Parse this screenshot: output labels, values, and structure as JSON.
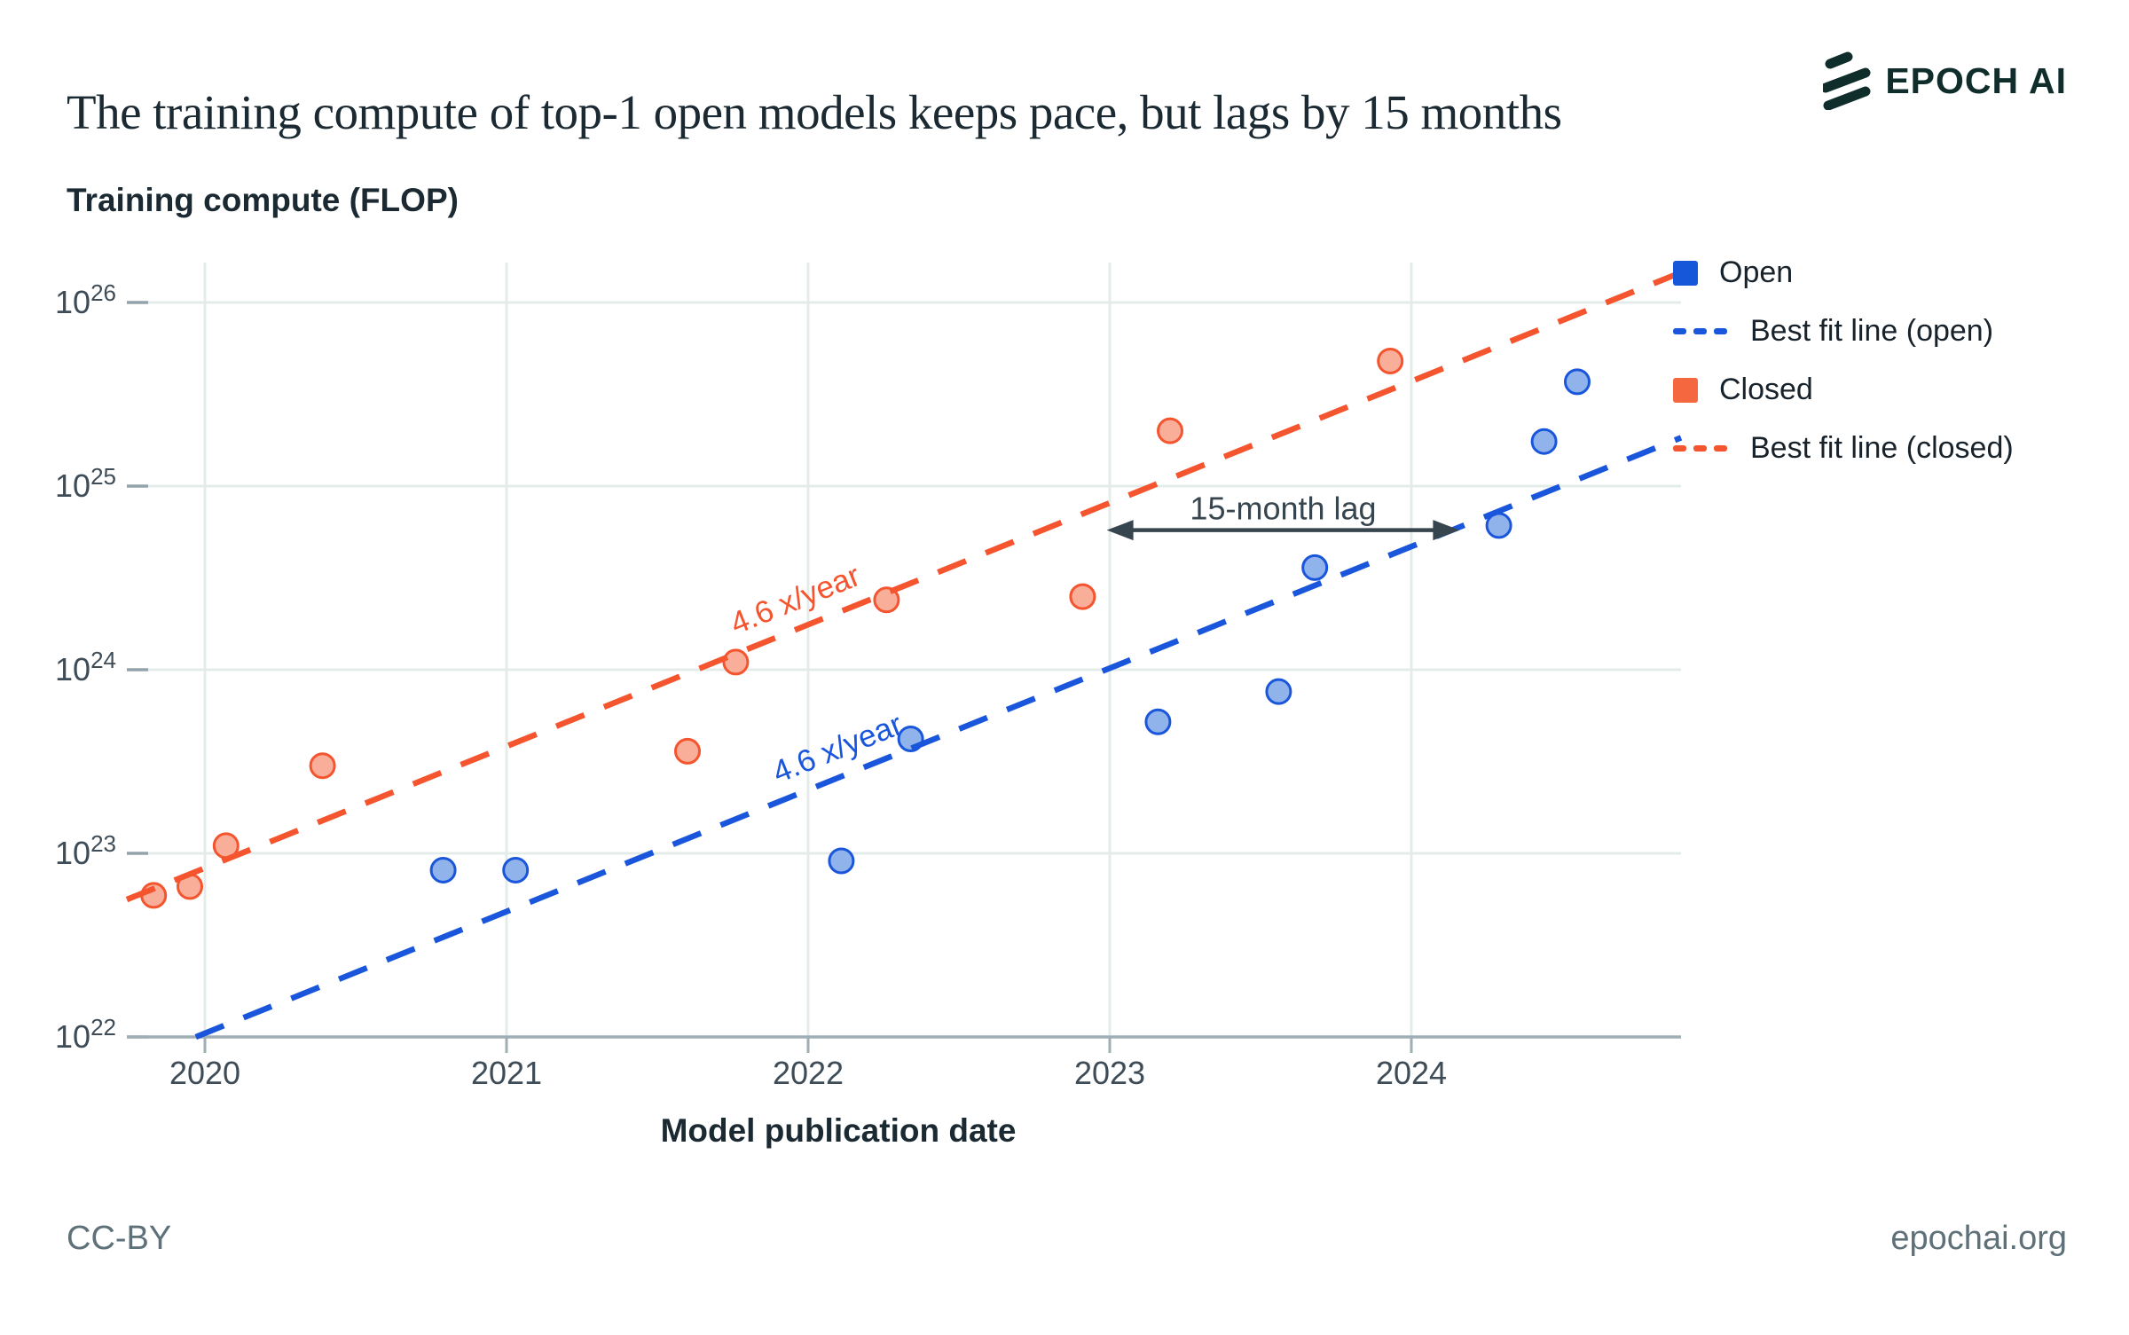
{
  "header": {
    "title": "The training compute of top-1 open models keeps pace, but lags by 15 months",
    "brand": "EPOCH AI"
  },
  "y_axis_title": "Training compute (FLOP)",
  "x_axis_title": "Model publication date",
  "footer": {
    "left": "CC-BY",
    "right": "epochai.org"
  },
  "legend": {
    "items": [
      {
        "label": "Open",
        "swatch": "square",
        "color": "#1656D9"
      },
      {
        "label": "Best fit line (open)",
        "swatch": "dash",
        "color": "#1A56DB"
      },
      {
        "label": "Closed",
        "swatch": "square",
        "color": "#F5683F"
      },
      {
        "label": "Best fit line (closed)",
        "swatch": "dash",
        "color": "#F4542E"
      }
    ]
  },
  "colors": {
    "open_line": "#1A56DB",
    "open_fill": "#8FB3EA",
    "closed_line": "#F4542E",
    "closed_fill": "#F9AE9A",
    "grid": "#E4ECEA",
    "axis": "#9FAFB5",
    "y_tick": "#93A3AB",
    "tick_text": "#3E4C57",
    "annotation": "#37454E",
    "title_text": "#1B2A32",
    "footer_text": "#5E7078",
    "brand_color": "#0F2D2B"
  },
  "chart_data": {
    "type": "scatter",
    "title": "The training compute of top-1 open models keeps pace, but lags by 15 months",
    "xlabel": "Model publication date",
    "ylabel": "Training compute (FLOP)",
    "x_ticks": [
      2020,
      2021,
      2022,
      2023,
      2024
    ],
    "y_tick_exponents": [
      22,
      23,
      24,
      25,
      26
    ],
    "x_range": [
      2019.74,
      2024.89
    ],
    "y_log_range": [
      22,
      26.2
    ],
    "grid": true,
    "legend_position": "top-right",
    "series": [
      {
        "name": "Open",
        "points": [
          [
            2020.79,
            8.1e+22
          ],
          [
            2021.03,
            8.1e+22
          ],
          [
            2022.11,
            9.1e+22
          ],
          [
            2022.34,
            4.2e+23
          ],
          [
            2023.16,
            5.2e+23
          ],
          [
            2023.56,
            7.6e+23
          ],
          [
            2023.68,
            3.6e+24
          ],
          [
            2024.29,
            6.1e+24
          ],
          [
            2024.44,
            1.75e+25
          ],
          [
            2024.55,
            3.7e+25
          ]
        ]
      },
      {
        "name": "Closed",
        "points": [
          [
            2019.83,
            5.9e+22
          ],
          [
            2019.95,
            6.6e+22
          ],
          [
            2020.07,
            1.1e+23
          ],
          [
            2020.39,
            3e+23
          ],
          [
            2021.6,
            3.6e+23
          ],
          [
            2021.76,
            1.1e+24
          ],
          [
            2022.26,
            2.4e+24
          ],
          [
            2022.91,
            2.5e+24
          ],
          [
            2023.2,
            2e+25
          ],
          [
            2023.93,
            4.8e+25
          ]
        ]
      }
    ],
    "fit_lines": [
      {
        "name": "Best fit line (open)",
        "label": "4.6 x/year",
        "growth_x_per_year": 4.6,
        "log10_flop_at_2020": 22.02,
        "label_at": [
          2022.11,
          23.52
        ]
      },
      {
        "name": "Best fit line (closed)",
        "label": "4.6 x/year",
        "growth_x_per_year": 4.6,
        "log10_flop_at_2020": 22.92,
        "label_at": [
          2021.97,
          24.33
        ]
      }
    ],
    "annotation": {
      "text": "15-month lag",
      "year_from": 2022.99,
      "year_to": 2024.16,
      "at_log10_flop": 24.76,
      "text_log10_flop": 24.82
    }
  }
}
